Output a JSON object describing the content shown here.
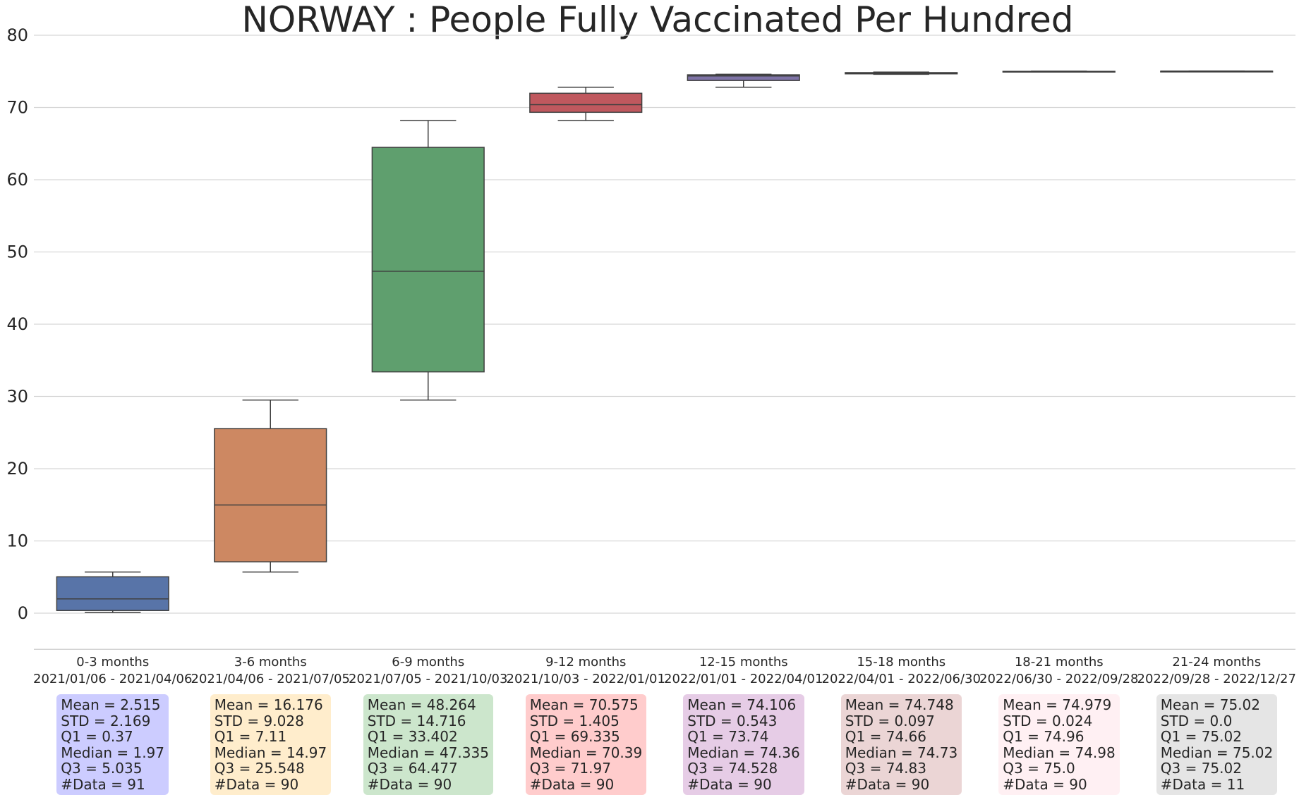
{
  "chart_data": {
    "type": "box",
    "title": "NORWAY : People Fully Vaccinated Per Hundred",
    "xlabel": "",
    "ylabel": "",
    "ylim": [
      -5,
      80
    ],
    "yticks": [
      0,
      10,
      20,
      30,
      40,
      50,
      60,
      70,
      80
    ],
    "grid": "horizontal",
    "categories": [
      {
        "label": "0-3 months",
        "range": "2021/01/06 - 2021/04/06"
      },
      {
        "label": "3-6 months",
        "range": "2021/04/06 - 2021/07/05"
      },
      {
        "label": "6-9 months",
        "range": "2021/07/05 - 2021/10/03"
      },
      {
        "label": "9-12 months",
        "range": "2021/10/03 - 2022/01/01"
      },
      {
        "label": "12-15 months",
        "range": "2022/01/01 - 2022/04/01"
      },
      {
        "label": "15-18 months",
        "range": "2022/04/01 - 2022/06/30"
      },
      {
        "label": "18-21 months",
        "range": "2022/06/30 - 2022/09/28"
      },
      {
        "label": "21-24 months",
        "range": "2022/09/28 - 2022/12/27"
      }
    ],
    "boxes": [
      {
        "whisker_low": 0.1,
        "q1": 0.37,
        "median": 1.97,
        "q3": 5.035,
        "whisker_high": 5.7,
        "color": "#5874a8"
      },
      {
        "whisker_low": 5.7,
        "q1": 7.11,
        "median": 14.97,
        "q3": 25.548,
        "whisker_high": 29.5,
        "color": "#cd8862"
      },
      {
        "whisker_low": 29.5,
        "q1": 33.402,
        "median": 47.335,
        "q3": 64.477,
        "whisker_high": 68.2,
        "color": "#5f9f6e"
      },
      {
        "whisker_low": 68.2,
        "q1": 69.335,
        "median": 70.39,
        "q3": 71.97,
        "whisker_high": 72.8,
        "color": "#c0585e"
      },
      {
        "whisker_low": 72.8,
        "q1": 73.74,
        "median": 74.36,
        "q3": 74.528,
        "whisker_high": 74.6,
        "color": "#7e73a6"
      },
      {
        "whisker_low": 74.6,
        "q1": 74.66,
        "median": 74.73,
        "q3": 74.83,
        "whisker_high": 74.9,
        "color": "#93735f"
      },
      {
        "whisker_low": 74.95,
        "q1": 74.96,
        "median": 74.98,
        "q3": 75.0,
        "whisker_high": 75.02,
        "color": "#d790c3"
      },
      {
        "whisker_low": 75.02,
        "q1": 75.02,
        "median": 75.02,
        "q3": 75.02,
        "whisker_high": 75.02,
        "color": "#8c8c8c"
      }
    ],
    "stats": [
      {
        "lines": [
          "Mean = 2.515",
          "STD = 2.169",
          "Q1 = 0.37",
          "Median = 1.97",
          "Q3 = 5.035",
          "#Data = 91"
        ],
        "bg": "#ccccff"
      },
      {
        "lines": [
          "Mean = 16.176",
          "STD = 9.028",
          "Q1 = 7.11",
          "Median = 14.97",
          "Q3 = 25.548",
          "#Data = 90"
        ],
        "bg": "#ffedcc"
      },
      {
        "lines": [
          "Mean = 48.264",
          "STD = 14.716",
          "Q1 = 33.402",
          "Median = 47.335",
          "Q3 = 64.477",
          "#Data = 90"
        ],
        "bg": "#cce6cc"
      },
      {
        "lines": [
          "Mean = 70.575",
          "STD = 1.405",
          "Q1 = 69.335",
          "Median = 70.39",
          "Q3 = 71.97",
          "#Data = 90"
        ],
        "bg": "#ffcccc"
      },
      {
        "lines": [
          "Mean = 74.106",
          "STD = 0.543",
          "Q1 = 73.74",
          "Median = 74.36",
          "Q3 = 74.528",
          "#Data = 90"
        ],
        "bg": "#e6cce6"
      },
      {
        "lines": [
          "Mean = 74.748",
          "STD = 0.097",
          "Q1 = 74.66",
          "Median = 74.73",
          "Q3 = 74.83",
          "#Data = 90"
        ],
        "bg": "#ebd5d5"
      },
      {
        "lines": [
          "Mean = 74.979",
          "STD = 0.024",
          "Q1 = 74.96",
          "Median = 74.98",
          "Q3 = 75.0",
          "#Data = 90"
        ],
        "bg": "#fff0f3"
      },
      {
        "lines": [
          "Mean = 75.02",
          "STD = 0.0",
          "Q1 = 75.02",
          "Median = 75.02",
          "Q3 = 75.02",
          "#Data = 11"
        ],
        "bg": "#e5e5e5"
      }
    ]
  }
}
